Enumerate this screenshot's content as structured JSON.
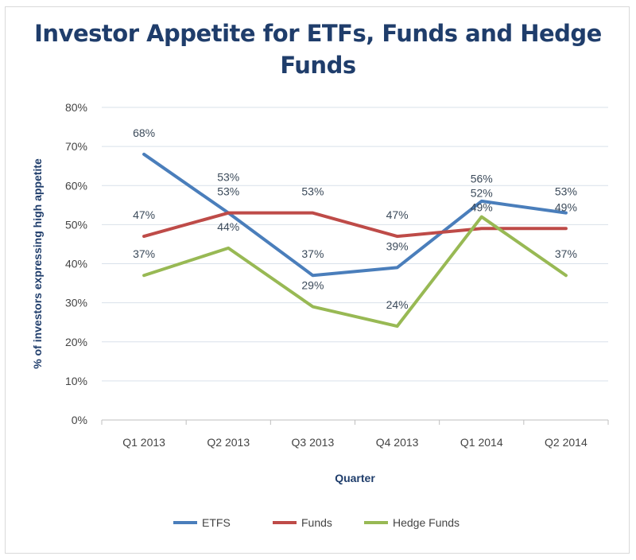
{
  "chart_data": {
    "type": "line",
    "title": "Investor Appetite for ETFs, Funds and Hedge Funds",
    "xlabel": "Quarter",
    "ylabel": "% of investors expressing high appetite",
    "categories": [
      "Q1 2013",
      "Q2 2013",
      "Q3 2013",
      "Q4 2013",
      "Q1 2014",
      "Q2 2014"
    ],
    "ylim": [
      0,
      80
    ],
    "yticks": [
      "0%",
      "10%",
      "20%",
      "30%",
      "40%",
      "50%",
      "60%",
      "70%",
      "80%"
    ],
    "grid": true,
    "legend": "bottom",
    "data_labels": true,
    "series": [
      {
        "name": "ETFS",
        "color": "#4a7ebb",
        "values": [
          68,
          53,
          37,
          39,
          56,
          53
        ]
      },
      {
        "name": "Funds",
        "color": "#be4b48",
        "values": [
          47,
          53,
          53,
          47,
          49,
          49
        ]
      },
      {
        "name": "Hedge Funds",
        "color": "#98b954",
        "values": [
          37,
          44,
          29,
          24,
          52,
          37
        ]
      }
    ]
  }
}
